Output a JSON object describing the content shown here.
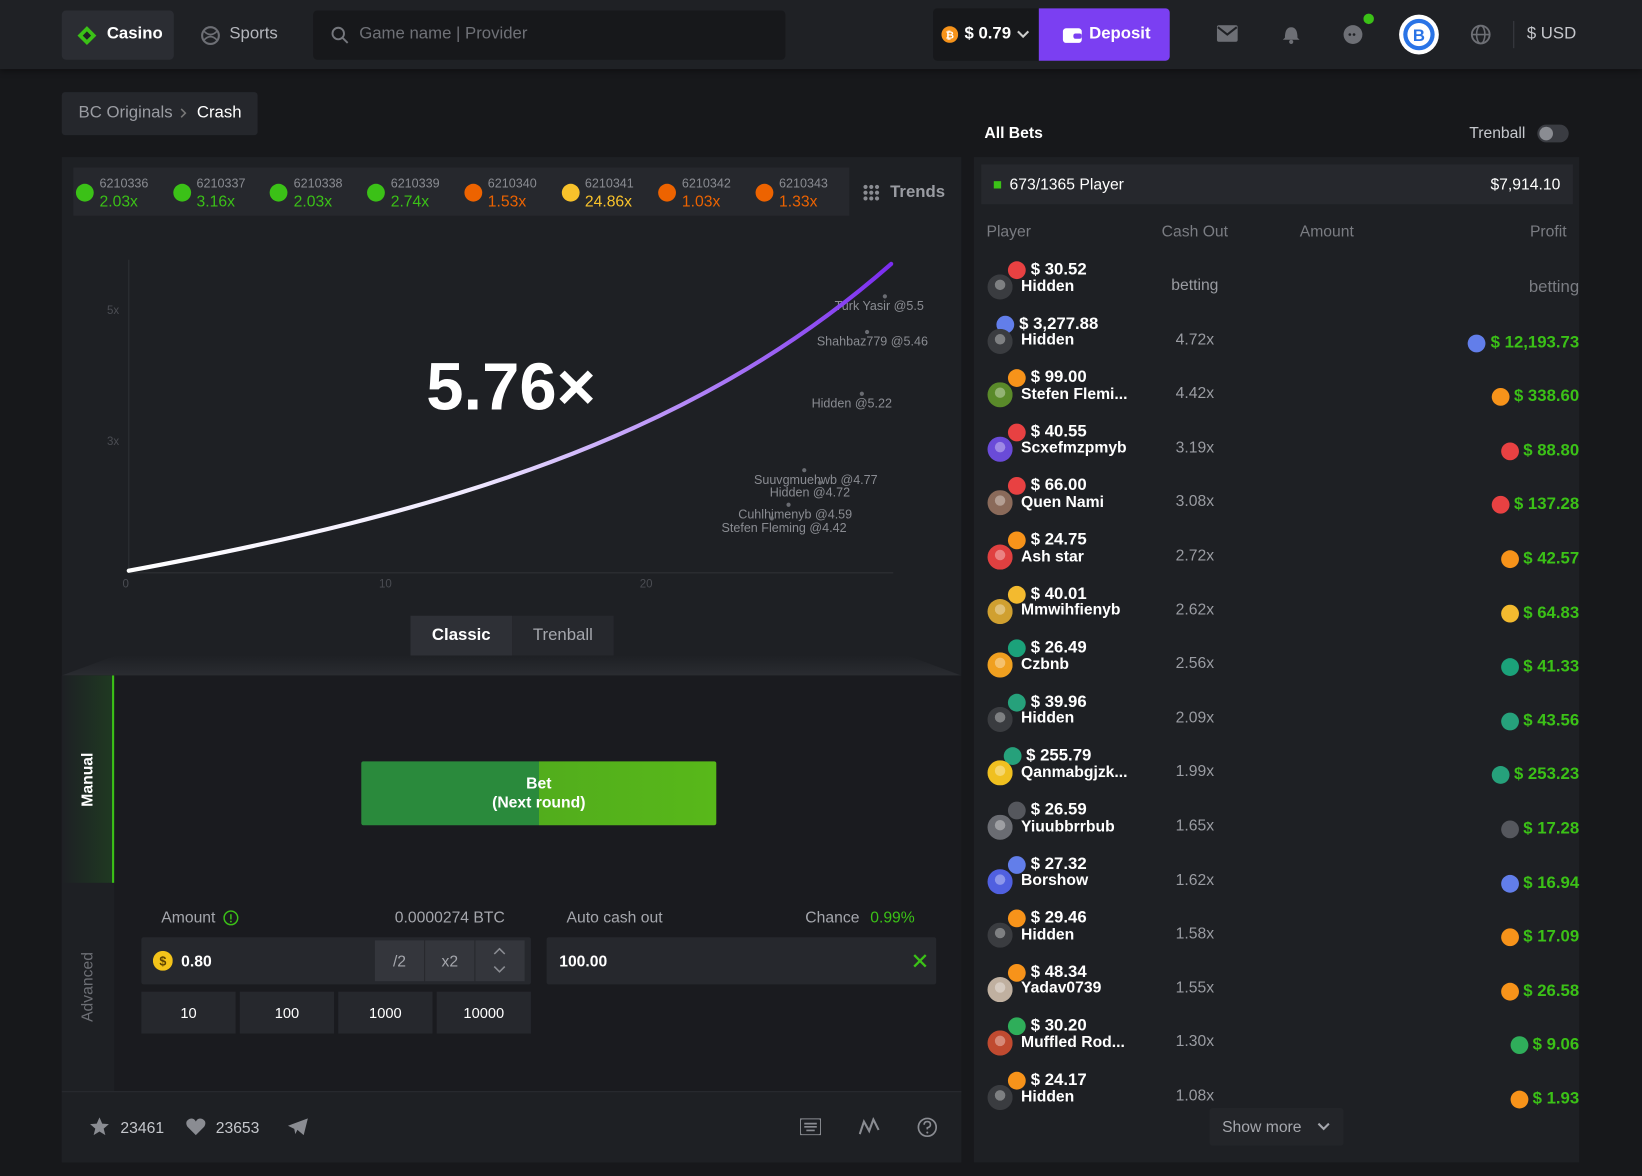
{
  "header": {
    "nav": [
      "Casino",
      "Sports"
    ],
    "search_placeholder": "Game name | Provider",
    "balance": "$ 0.79",
    "deposit": "Deposit",
    "currency": "$ USD"
  },
  "breadcrumb": [
    "BC Originals",
    "Crash"
  ],
  "history": [
    {
      "id": "6210336",
      "multiplier": "2.03x",
      "color": "#3bc117"
    },
    {
      "id": "6210337",
      "multiplier": "3.16x",
      "color": "#3bc117"
    },
    {
      "id": "6210338",
      "multiplier": "2.03x",
      "color": "#3bc117"
    },
    {
      "id": "6210339",
      "multiplier": "2.74x",
      "color": "#3bc117"
    },
    {
      "id": "6210340",
      "multiplier": "1.53x",
      "color": "#ed6300"
    },
    {
      "id": "6210341",
      "multiplier": "24.86x",
      "color": "#f8c22b"
    },
    {
      "id": "6210342",
      "multiplier": "1.03x",
      "color": "#ed6300"
    },
    {
      "id": "6210343",
      "multiplier": "1.33x",
      "color": "#ed6300"
    }
  ],
  "trends": "Trends",
  "graph": {
    "multiplier": "5.76×",
    "y_labels": [
      "5x",
      "3x"
    ],
    "x_labels": [
      "0",
      "10",
      "20"
    ],
    "cashouts": [
      "Turk Yasir @5.5",
      "Shahbaz779 @5.46",
      "Hidden @5.22",
      "Suuvgmuehwb @4.77",
      "Hidden @4.72",
      "Cuhlhimenyb @4.59",
      "Stefen Fleming @4.42"
    ]
  },
  "modes": [
    "Classic",
    "Trenball"
  ],
  "bet_panel": {
    "tabs": [
      "Manual",
      "Advanced"
    ],
    "button": [
      "Bet",
      "(Next round)"
    ],
    "amount_label": "Amount",
    "amount_btc": "0.0000274 BTC",
    "amount": "0.80",
    "half": "/2",
    "double": "x2",
    "presets": [
      "10",
      "100",
      "1000",
      "10000"
    ],
    "auto_cash_out_label": "Auto cash out",
    "auto_cash_out": "100.00",
    "chance_label": "Chance",
    "chance": "0.99%"
  },
  "footer": {
    "favorites": "23461",
    "likes": "23653"
  },
  "bets": {
    "title": "All Bets",
    "toggle": "Trenball",
    "players": "673/1365 Player",
    "total": "$7,914.10",
    "columns": [
      "Player",
      "Cash Out",
      "Amount",
      "Profit"
    ],
    "rows": [
      {
        "name": "Hidden",
        "cash_out": "betting",
        "amount": "$ 30.52",
        "profit": "betting",
        "avatar": "#3a3c40",
        "amount_coin": "#e84142",
        "profit_coin": null
      },
      {
        "name": "Hidden",
        "cash_out": "4.72x",
        "amount": "$ 3,277.88",
        "profit": "$ 12,193.73",
        "avatar": "#3a3c40",
        "amount_coin": "#627eea",
        "profit_coin": "#627eea"
      },
      {
        "name": "Stefen Flemi...",
        "cash_out": "4.42x",
        "amount": "$ 99.00",
        "profit": "$ 338.60",
        "avatar": "#5a8a2a",
        "amount_coin": "#f7931a",
        "profit_coin": "#f7931a"
      },
      {
        "name": "Scxefmzpmyb",
        "cash_out": "3.19x",
        "amount": "$ 40.55",
        "profit": "$ 88.80",
        "avatar": "#6a4bd8",
        "amount_coin": "#e84142",
        "profit_coin": "#e84142"
      },
      {
        "name": "Quen Nami",
        "cash_out": "3.08x",
        "amount": "$ 66.00",
        "profit": "$ 137.28",
        "avatar": "#8a6a5a",
        "amount_coin": "#e84142",
        "profit_coin": "#e84142"
      },
      {
        "name": "Ash star",
        "cash_out": "2.72x",
        "amount": "$ 24.75",
        "profit": "$ 42.57",
        "avatar": "#e04040",
        "amount_coin": "#f7931a",
        "profit_coin": "#f7931a"
      },
      {
        "name": "Mmwihfienyb",
        "cash_out": "2.62x",
        "amount": "$ 40.01",
        "profit": "$ 64.83",
        "avatar": "#d0a030",
        "amount_coin": "#f3ba2f",
        "profit_coin": "#f3ba2f"
      },
      {
        "name": "Czbnb",
        "cash_out": "2.56x",
        "amount": "$ 26.49",
        "profit": "$ 41.33",
        "avatar": "#f0a020",
        "amount_coin": "#1ba27a",
        "profit_coin": "#1ba27a"
      },
      {
        "name": "Hidden",
        "cash_out": "2.09x",
        "amount": "$ 39.96",
        "profit": "$ 43.56",
        "avatar": "#3a3c40",
        "amount_coin": "#26a17b",
        "profit_coin": "#26a17b"
      },
      {
        "name": "Qanmabgjzk...",
        "cash_out": "1.99x",
        "amount": "$ 255.79",
        "profit": "$ 253.23",
        "avatar": "#f0c020",
        "amount_coin": "#26a17b",
        "profit_coin": "#26a17b"
      },
      {
        "name": "Yiuubbrrbub",
        "cash_out": "1.65x",
        "amount": "$ 26.59",
        "profit": "$ 17.28",
        "avatar": "#6a6c72",
        "amount_coin": "#55575d",
        "profit_coin": "#55575d"
      },
      {
        "name": "Borshow",
        "cash_out": "1.62x",
        "amount": "$ 27.32",
        "profit": "$ 16.94",
        "avatar": "#5060e0",
        "amount_coin": "#627eea",
        "profit_coin": "#627eea"
      },
      {
        "name": "Hidden",
        "cash_out": "1.58x",
        "amount": "$ 29.46",
        "profit": "$ 17.09",
        "avatar": "#3a3c40",
        "amount_coin": "#f7931a",
        "profit_coin": "#f7931a"
      },
      {
        "name": "Yadav0739",
        "cash_out": "1.55x",
        "amount": "$ 48.34",
        "profit": "$ 26.58",
        "avatar": "#c0b0a0",
        "amount_coin": "#f7931a",
        "profit_coin": "#f7931a"
      },
      {
        "name": "Muffled Rod...",
        "cash_out": "1.30x",
        "amount": "$ 30.20",
        "profit": "$ 9.06",
        "avatar": "#c04a30",
        "amount_coin": "#2fae5a",
        "profit_coin": "#2fae5a"
      },
      {
        "name": "Hidden",
        "cash_out": "1.08x",
        "amount": "$ 24.17",
        "profit": "$ 1.93",
        "avatar": "#3a3c40",
        "amount_coin": "#f7931a",
        "profit_coin": "#f7931a"
      }
    ],
    "show_more": "Show more"
  }
}
